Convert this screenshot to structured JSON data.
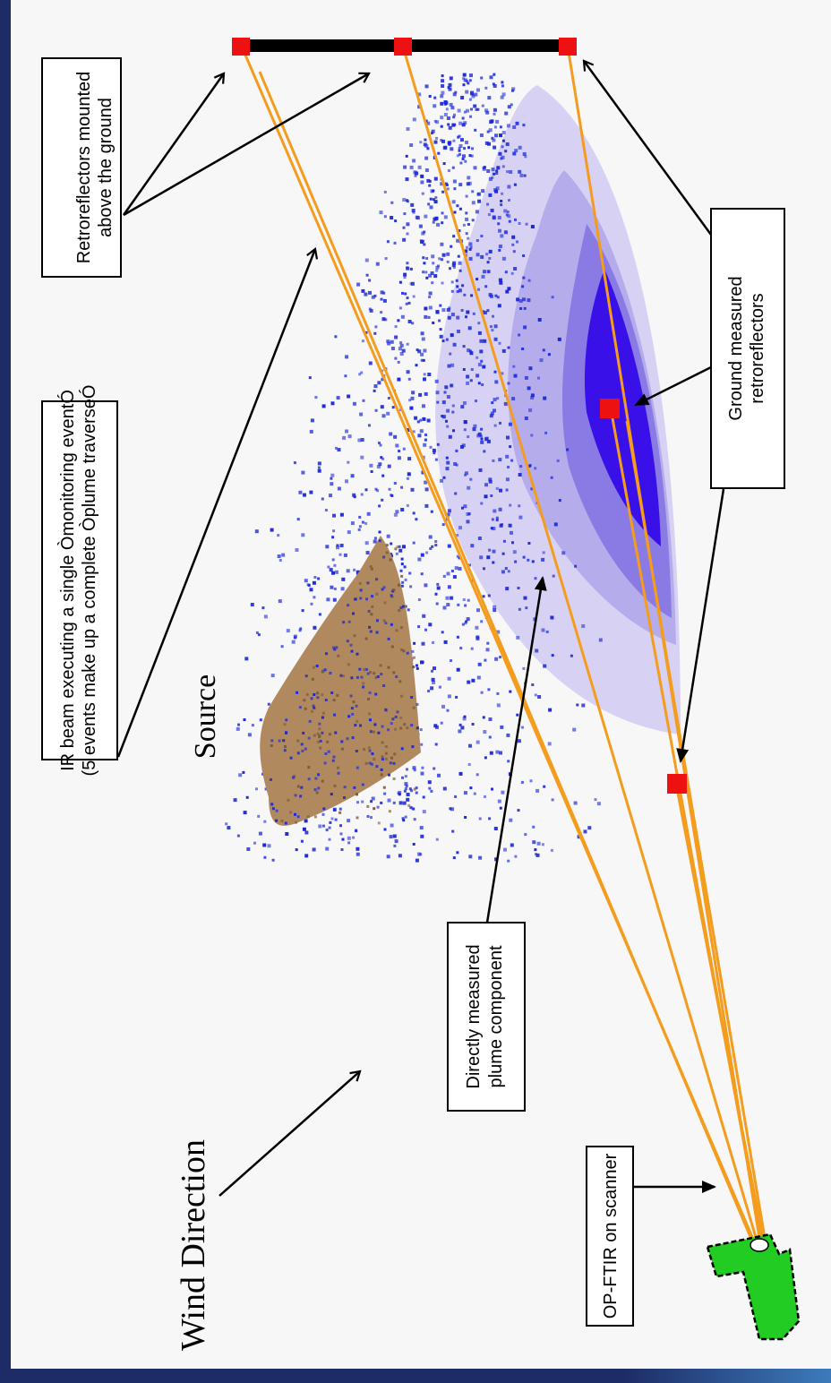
{
  "labels": {
    "retro_above": [
      "Retroreflectors mounted",
      "above the ground"
    ],
    "ir_beam": [
      "IR beam executing a single Òmonitoring eventÓ",
      "(5 events make up a complete Òplume traverseÓ"
    ],
    "ground_retro": [
      "Ground measured",
      "retroreflectors"
    ],
    "plume_component": [
      "Directly measured",
      "plume component"
    ],
    "op_ftir": "OP-FTIR on scanner",
    "source": "Source",
    "wind": "Wind Direction"
  },
  "colors": {
    "beam": "#f39c1e",
    "retroreflector": "#ee1111",
    "scanner": "#22cc22",
    "source_area": "#b08a5e",
    "scatter": "#1a28d8",
    "plume_outer": "#d7d2f4",
    "plume_mid": "#b5acec",
    "plume_inner": "#8a7be4",
    "plume_core": "#3a10e8",
    "frame": "#1d2c66"
  }
}
